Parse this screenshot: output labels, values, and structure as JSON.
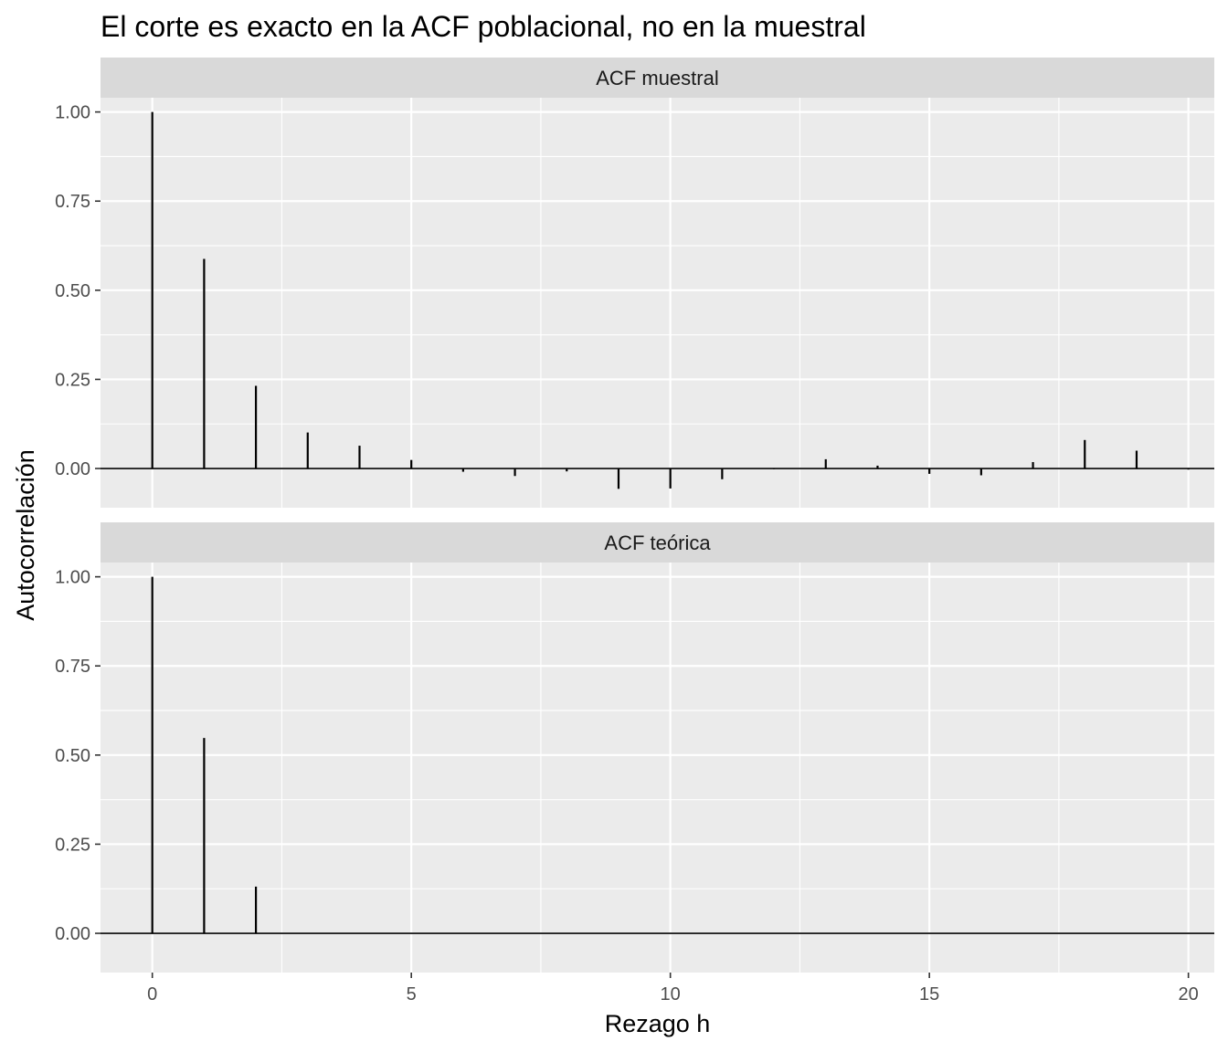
{
  "chart_data": {
    "type": "bar",
    "title": "El corte es exacto en la ACF poblacional, no en la muestral",
    "xlabel": "Rezago h",
    "ylabel": "Autocorrelación",
    "xlim": [
      -1,
      20.5
    ],
    "ylim": [
      -0.11,
      1.04
    ],
    "x_ticks": [
      0,
      5,
      10,
      15,
      20
    ],
    "x_tick_labels": [
      "0",
      "5",
      "10",
      "15",
      "20"
    ],
    "y_ticks": [
      0,
      0.25,
      0.5,
      0.75,
      1
    ],
    "y_tick_labels": [
      "0.00",
      "0.25",
      "0.50",
      "0.75",
      "1.00"
    ],
    "grid": true,
    "reference_line_y": 0,
    "colors": {
      "panel_background": "#ebebeb",
      "strip_background": "#d9d9d9",
      "grid_line": "#ffffff",
      "segment": "#000000"
    },
    "panels": [
      {
        "label": "ACF muestral",
        "lags": [
          0,
          1,
          2,
          3,
          4,
          5,
          6,
          7,
          8,
          9,
          10,
          11,
          12,
          13,
          14,
          15,
          16,
          17,
          18,
          19,
          20
        ],
        "values": [
          1.0,
          0.588,
          0.232,
          0.101,
          0.064,
          0.024,
          -0.009,
          -0.021,
          -0.008,
          -0.057,
          -0.056,
          -0.03,
          -0.002,
          0.026,
          0.008,
          -0.015,
          -0.019,
          0.018,
          0.08,
          0.05,
          -0.003
        ]
      },
      {
        "label": "ACF teórica",
        "lags": [
          0,
          1,
          2,
          3,
          4,
          5,
          6,
          7,
          8,
          9,
          10,
          11,
          12,
          13,
          14,
          15,
          16,
          17,
          18,
          19,
          20
        ],
        "values": [
          1.0,
          0.548,
          0.131,
          0,
          0,
          0,
          0,
          0,
          0,
          0,
          0,
          0,
          0,
          0,
          0,
          0,
          0,
          0,
          0,
          0,
          0
        ]
      }
    ]
  }
}
